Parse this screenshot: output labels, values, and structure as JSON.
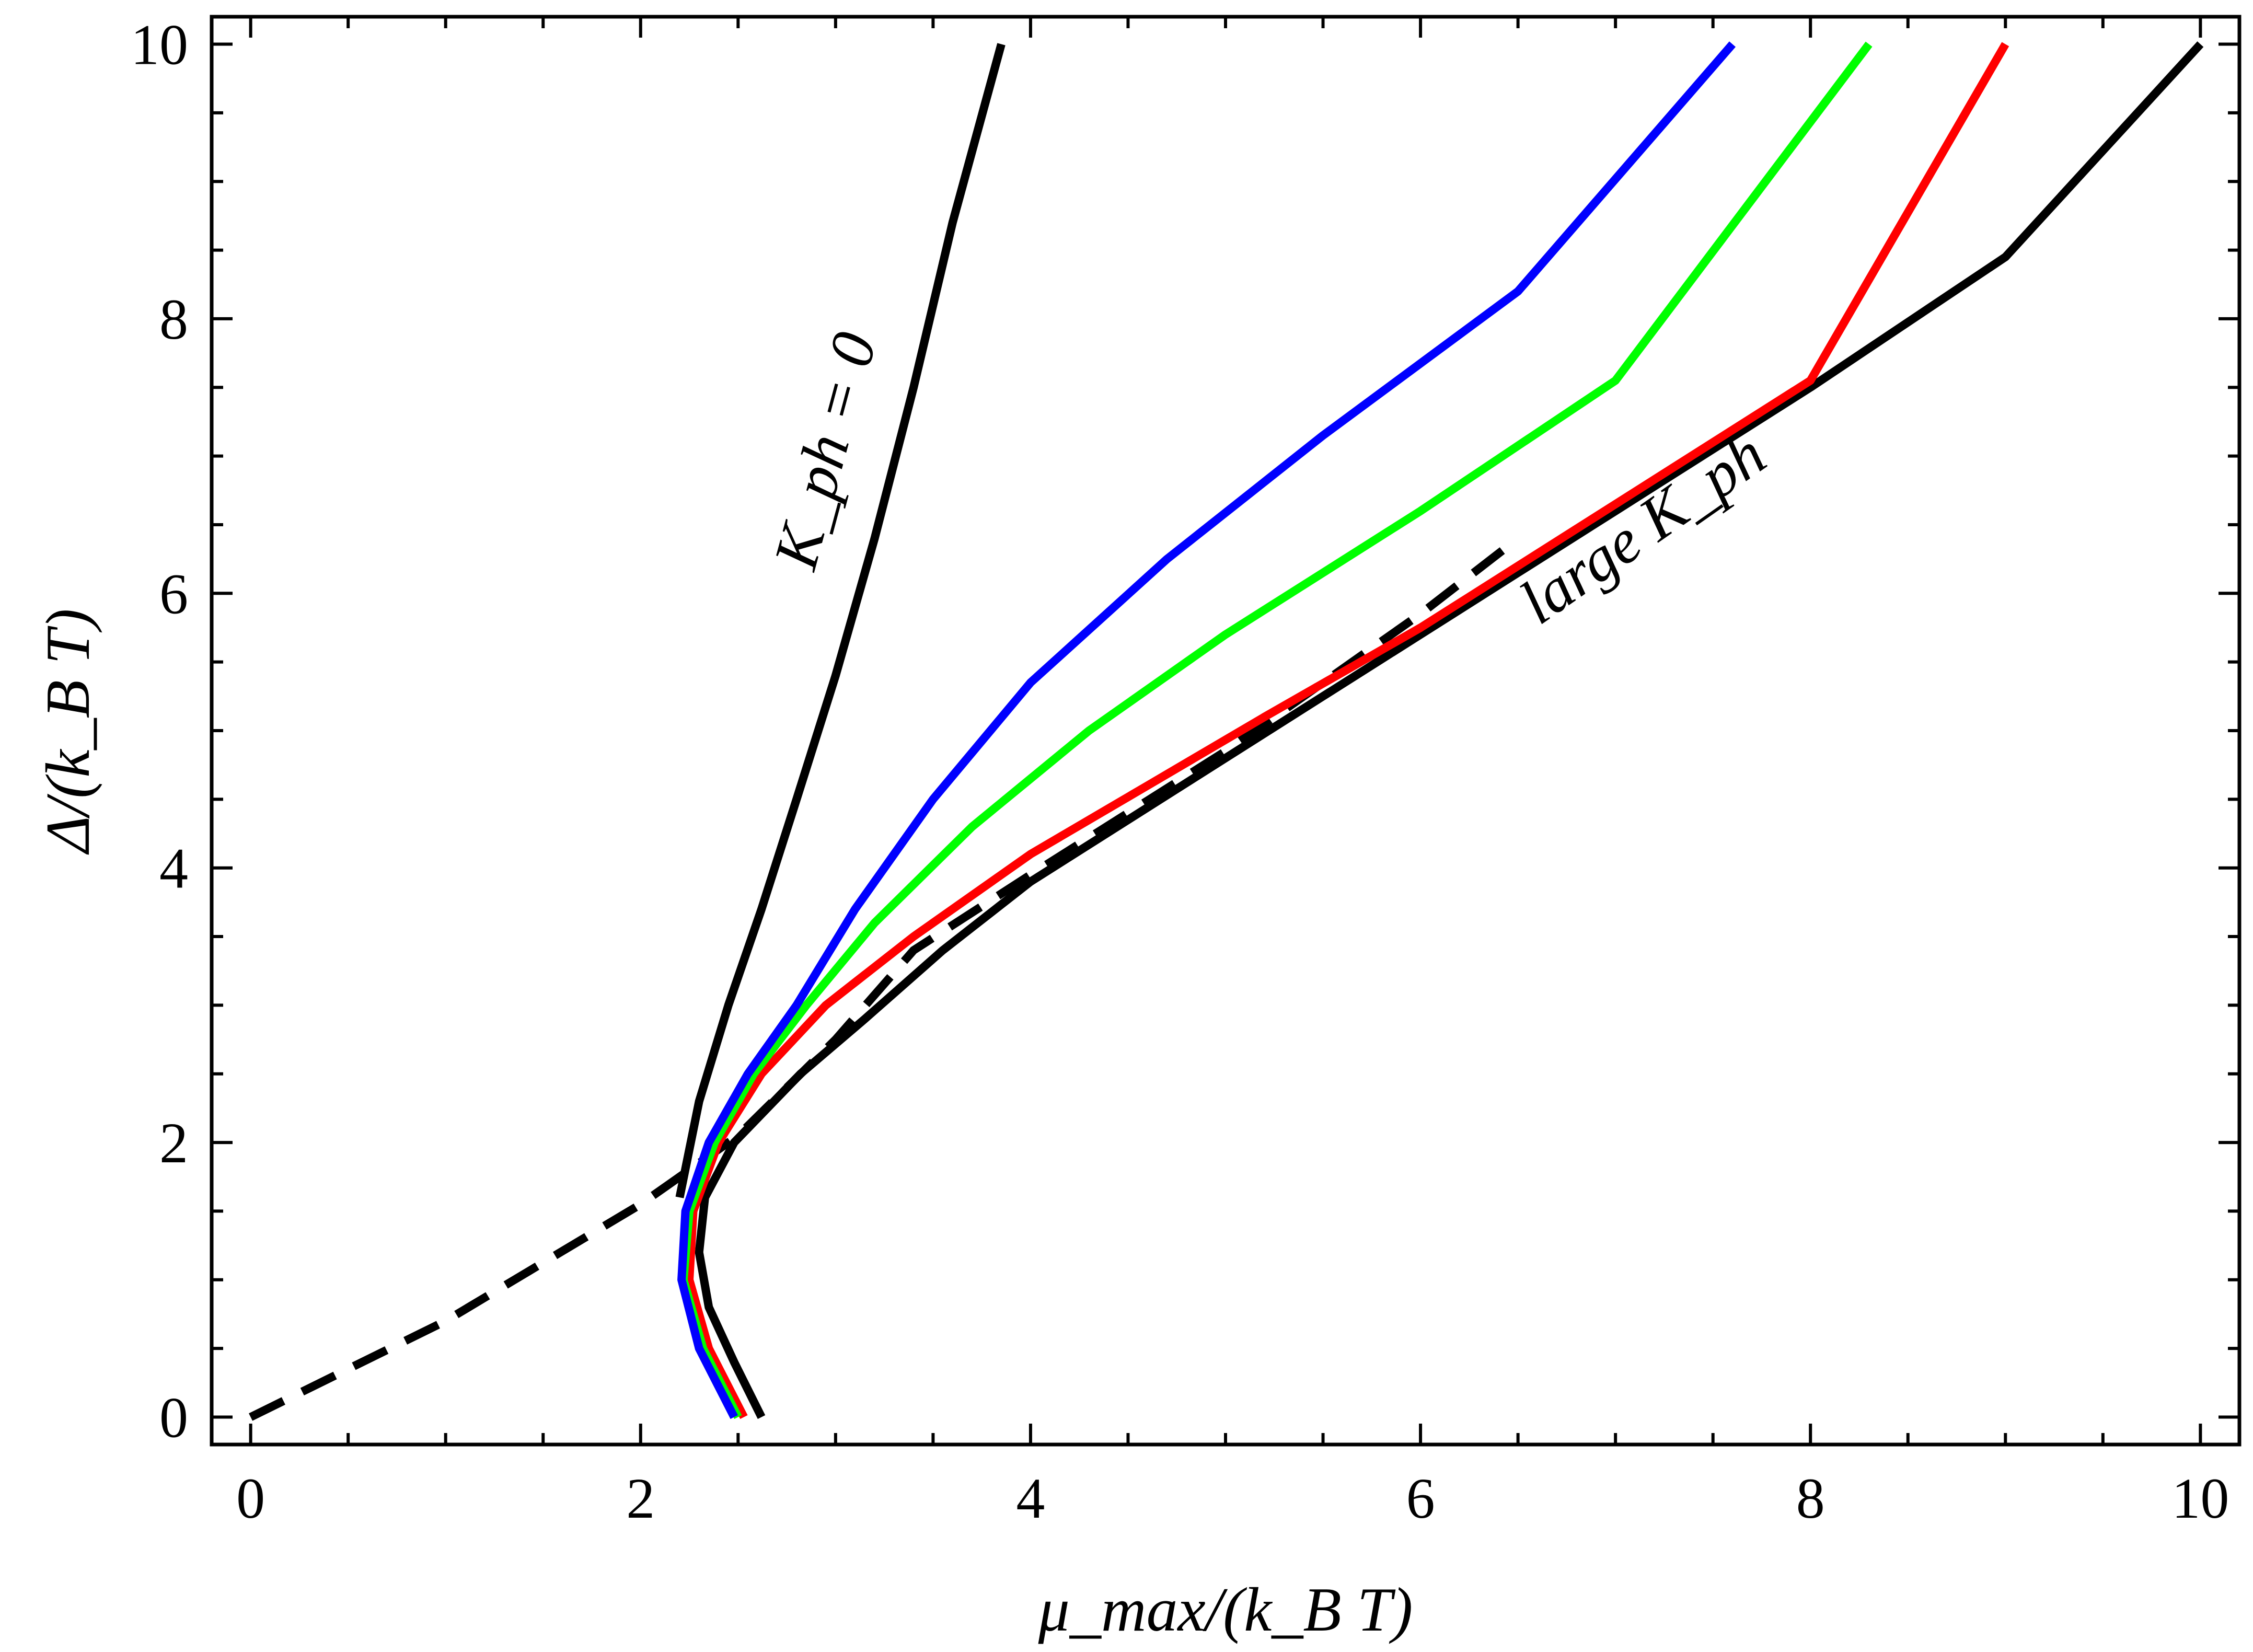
{
  "chart_data": {
    "type": "line",
    "title": "",
    "xlabel": "μ_max/(k_B T)",
    "ylabel": "Δ/(k_B T)",
    "xlim": [
      -0.2,
      10.2
    ],
    "ylim": [
      -0.2,
      10.2
    ],
    "xticks": [
      "0",
      "2",
      "4",
      "6",
      "8",
      "10"
    ],
    "yticks": [
      "0",
      "2",
      "4",
      "6",
      "8",
      "10"
    ],
    "grid": false,
    "legend": "none",
    "annotations": [
      {
        "text": "K_ph = 0",
        "x": 3.05,
        "y": 7.0,
        "rotation": -75
      },
      {
        "text": "large K_ph",
        "x": 7.2,
        "y": 6.35,
        "rotation": -35
      }
    ],
    "series": [
      {
        "color": "#000000",
        "style": "solid",
        "x": [
          2.62,
          2.48,
          2.35,
          2.3,
          2.33,
          2.48,
          2.82,
          3.15,
          3.55,
          4.0,
          4.5,
          5.0,
          5.5,
          6.0,
          6.5,
          7.0,
          8.0,
          9.0,
          10.0
        ],
        "y": [
          0.0,
          0.4,
          0.8,
          1.2,
          1.6,
          2.0,
          2.5,
          2.9,
          3.4,
          3.9,
          4.35,
          4.8,
          5.25,
          5.7,
          6.15,
          6.6,
          7.5,
          8.45,
          10.0
        ]
      },
      {
        "color": "#000000",
        "style": "dashed",
        "x": [
          0.0,
          1.0,
          2.0,
          2.5,
          3.0,
          3.4,
          4.0,
          5.0,
          6.0,
          6.5
        ],
        "y": [
          0.0,
          0.7,
          1.55,
          2.05,
          2.75,
          3.4,
          3.95,
          4.85,
          5.85,
          6.4
        ]
      },
      {
        "color": "#ff0000",
        "style": "solid",
        "x": [
          2.53,
          2.35,
          2.25,
          2.27,
          2.4,
          2.62,
          2.95,
          3.4,
          4.0,
          4.6,
          5.2,
          6.0,
          7.0,
          8.0,
          9.0
        ],
        "y": [
          0.0,
          0.5,
          1.0,
          1.5,
          2.0,
          2.5,
          3.0,
          3.5,
          4.1,
          4.6,
          5.1,
          5.75,
          6.65,
          7.55,
          10.0
        ]
      },
      {
        "color": "#00ff00",
        "style": "solid",
        "x": [
          2.5,
          2.32,
          2.22,
          2.25,
          2.38,
          2.58,
          2.85,
          3.2,
          3.7,
          4.3,
          5.0,
          6.0,
          7.0,
          8.3
        ],
        "y": [
          0.0,
          0.5,
          1.0,
          1.5,
          2.0,
          2.5,
          3.0,
          3.6,
          4.3,
          5.0,
          5.7,
          6.6,
          7.55,
          10.0
        ]
      },
      {
        "color": "#0000ff",
        "style": "solid",
        "x": [
          2.48,
          2.3,
          2.21,
          2.23,
          2.35,
          2.55,
          2.8,
          3.1,
          3.5,
          4.0,
          4.7,
          5.5,
          6.5,
          7.6
        ],
        "y": [
          0.0,
          0.5,
          1.0,
          1.5,
          2.0,
          2.5,
          3.0,
          3.7,
          4.5,
          5.35,
          6.25,
          7.15,
          8.2,
          10.0
        ]
      },
      {
        "color": "#000000",
        "style": "solid",
        "x": [
          2.2,
          2.3,
          2.45,
          2.62,
          2.8,
          3.0,
          3.2,
          3.4,
          3.6,
          3.85
        ],
        "y": [
          1.6,
          2.3,
          3.0,
          3.7,
          4.5,
          5.4,
          6.4,
          7.5,
          8.7,
          10.0
        ]
      }
    ]
  }
}
